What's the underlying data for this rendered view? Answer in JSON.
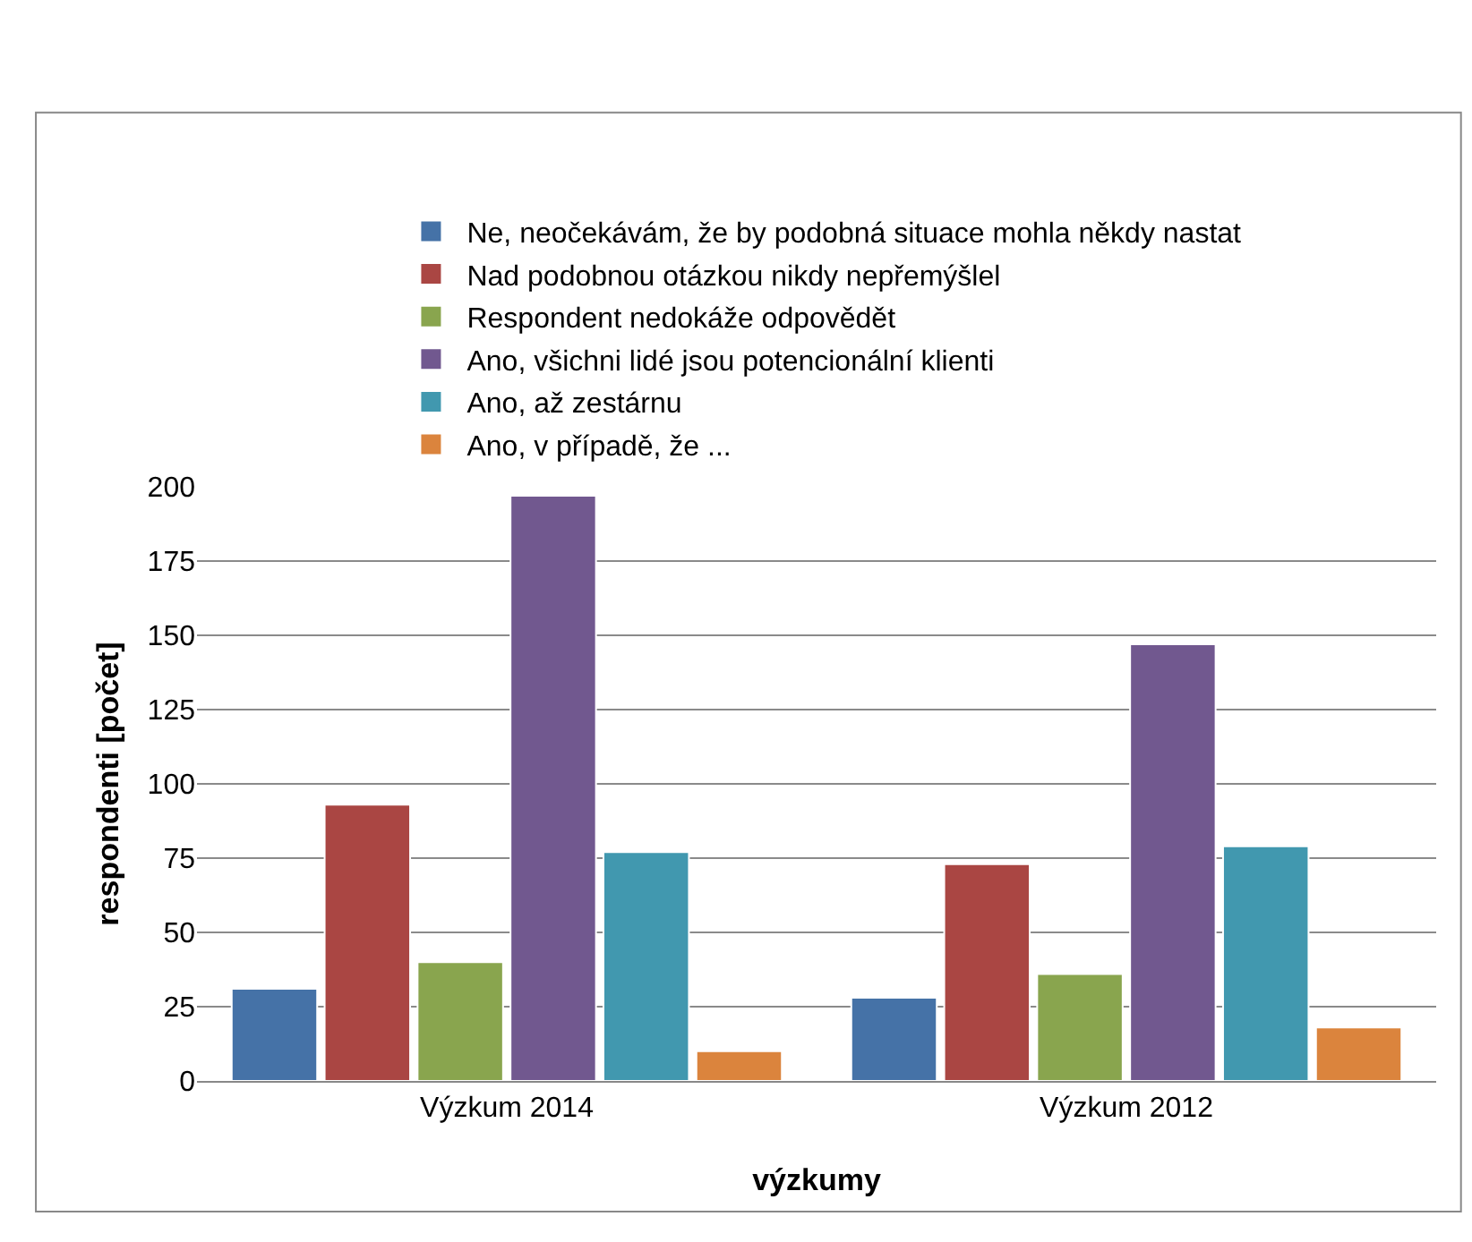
{
  "chart_data": {
    "type": "bar",
    "xlabel": "výzkumy",
    "ylabel": "respondenti [počet]",
    "categories": [
      "Výzkum 2014",
      "Výzkum 2012"
    ],
    "series": [
      {
        "name": "Ne, neočekávám, že by podobná situace mohla někdy nastat",
        "color": "#4572a7",
        "values": [
          31,
          28
        ]
      },
      {
        "name": "Nad podobnou otázkou nikdy nepřemýšlel",
        "color": "#aa4643",
        "values": [
          93,
          73
        ]
      },
      {
        "name": "Respondent nedokáže odpovědět",
        "color": "#89a54e",
        "values": [
          40,
          36
        ]
      },
      {
        "name": "Ano, všichni lidé jsou potencionální klienti",
        "color": "#71588f",
        "values": [
          197,
          147
        ]
      },
      {
        "name": "Ano, až zestárnu",
        "color": "#4198af",
        "values": [
          77,
          79
        ]
      },
      {
        "name": "Ano, v případě, že ...",
        "color": "#db843d",
        "values": [
          10,
          18
        ]
      }
    ],
    "ylim": [
      0,
      200
    ],
    "yticks": [
      0,
      25,
      50,
      75,
      100,
      125,
      150,
      175,
      200
    ],
    "grid": "y",
    "legend": "top"
  }
}
